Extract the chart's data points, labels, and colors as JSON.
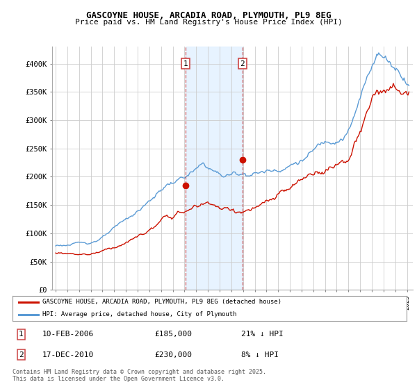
{
  "title": "GASCOYNE HOUSE, ARCADIA ROAD, PLYMOUTH, PL9 8EG",
  "subtitle": "Price paid vs. HM Land Registry's House Price Index (HPI)",
  "yticks": [
    0,
    50000,
    100000,
    150000,
    200000,
    250000,
    300000,
    350000,
    400000
  ],
  "ytick_labels": [
    "£0",
    "£50K",
    "£100K",
    "£150K",
    "£200K",
    "£250K",
    "£300K",
    "£350K",
    "£400K"
  ],
  "ylim": [
    0,
    430000
  ],
  "xlim_start": 1994.7,
  "xlim_end": 2025.5,
  "hpi_color": "#5b9bd5",
  "price_color": "#cc1100",
  "dashed_line_color": "#cc4444",
  "shade_color": "#ddeeff",
  "sale1_x": 2006.1,
  "sale1_y": 185000,
  "sale2_x": 2010.95,
  "sale2_y": 230000,
  "legend_line1": "GASCOYNE HOUSE, ARCADIA ROAD, PLYMOUTH, PL9 8EG (detached house)",
  "legend_line2": "HPI: Average price, detached house, City of Plymouth",
  "table_row1": [
    "1",
    "10-FEB-2006",
    "£185,000",
    "21% ↓ HPI"
  ],
  "table_row2": [
    "2",
    "17-DEC-2010",
    "£230,000",
    "8% ↓ HPI"
  ],
  "footnote": "Contains HM Land Registry data © Crown copyright and database right 2025.\nThis data is licensed under the Open Government Licence v3.0.",
  "background_color": "#ffffff",
  "grid_color": "#cccccc"
}
